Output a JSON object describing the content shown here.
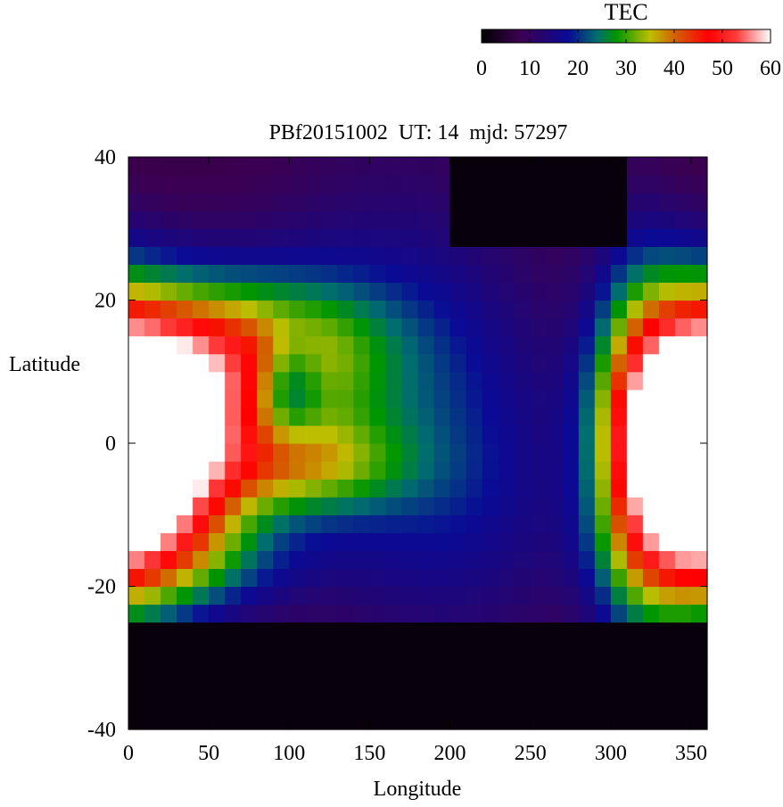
{
  "chart_data": {
    "type": "heatmap",
    "title": "PBf20151002  UT: 14  mjd: 57297",
    "xlabel": "Longitude",
    "ylabel": "Latitude",
    "xlim": [
      0,
      360
    ],
    "ylim": [
      -40,
      40
    ],
    "x_ticks": [
      "0",
      "50",
      "100",
      "150",
      "200",
      "250",
      "300",
      "350"
    ],
    "y_ticks": [
      "40",
      "20",
      "0",
      "-20",
      "-40"
    ],
    "x_tick_values": [
      0,
      50,
      100,
      150,
      200,
      250,
      300,
      350
    ],
    "y_tick_values": [
      40,
      20,
      0,
      -20,
      -40
    ],
    "colorbar": {
      "label": "TEC",
      "range": [
        0,
        60
      ],
      "ticks": [
        "0",
        "10",
        "20",
        "30",
        "40",
        "50",
        "60"
      ],
      "tick_values": [
        0,
        10,
        20,
        30,
        40,
        50,
        60
      ],
      "stops": [
        {
          "v": 0,
          "color": "#000000"
        },
        {
          "v": 8,
          "color": "#3c0050"
        },
        {
          "v": 18,
          "color": "#0a0a96"
        },
        {
          "v": 24,
          "color": "#006e6e"
        },
        {
          "v": 28,
          "color": "#009600"
        },
        {
          "v": 35,
          "color": "#bebe00"
        },
        {
          "v": 40,
          "color": "#d26400"
        },
        {
          "v": 47,
          "color": "#ff0000"
        },
        {
          "v": 53,
          "color": "#ff3c3c"
        },
        {
          "v": 60,
          "color": "#ffffff"
        }
      ]
    },
    "grid": {
      "lon_step": 10,
      "lat_step": 2.5
    },
    "tec_components": [
      {
        "lon": 25,
        "lat": 0,
        "lon_width": 35,
        "lat_width": 12,
        "amplitude": 45
      },
      {
        "lon": 80,
        "lat": 12,
        "lon_width": 55,
        "lat_width": 8,
        "amplitude": 30
      },
      {
        "lon": 105,
        "lat": -3,
        "lon_width": 45,
        "lat_width": 5,
        "amplitude": 22
      },
      {
        "lon": 100,
        "lat": 8,
        "lon_width": 14,
        "lat_width": 5,
        "amplitude": -14
      },
      {
        "lon": 345,
        "lat": 0,
        "lon_width": 30,
        "lat_width": 14,
        "amplitude": 57
      },
      {
        "lon": 315,
        "lat": 0,
        "lon_width": 20,
        "lat_width": 20,
        "amplitude": 15
      },
      {
        "lon": 40,
        "lat": -16,
        "lon_width": 60,
        "lat_width": 6,
        "amplitude": 12
      },
      {
        "lon": 200,
        "lat": -5,
        "lon_width": 60,
        "lat_width": 18,
        "amplitude": 12
      },
      {
        "lon": 160,
        "lat": 25,
        "lon_width": 70,
        "lat_width": 15,
        "amplitude": 6
      }
    ],
    "tec_background": 6,
    "night_regions": [
      {
        "lon_from": 0,
        "lon_to": 360,
        "lat_top": -25,
        "lat_bottom": -40,
        "tec": 1
      },
      {
        "lon_from": 200,
        "lon_to": 310,
        "lat_top": 40,
        "lat_bottom": 28,
        "tec": 1
      }
    ]
  }
}
